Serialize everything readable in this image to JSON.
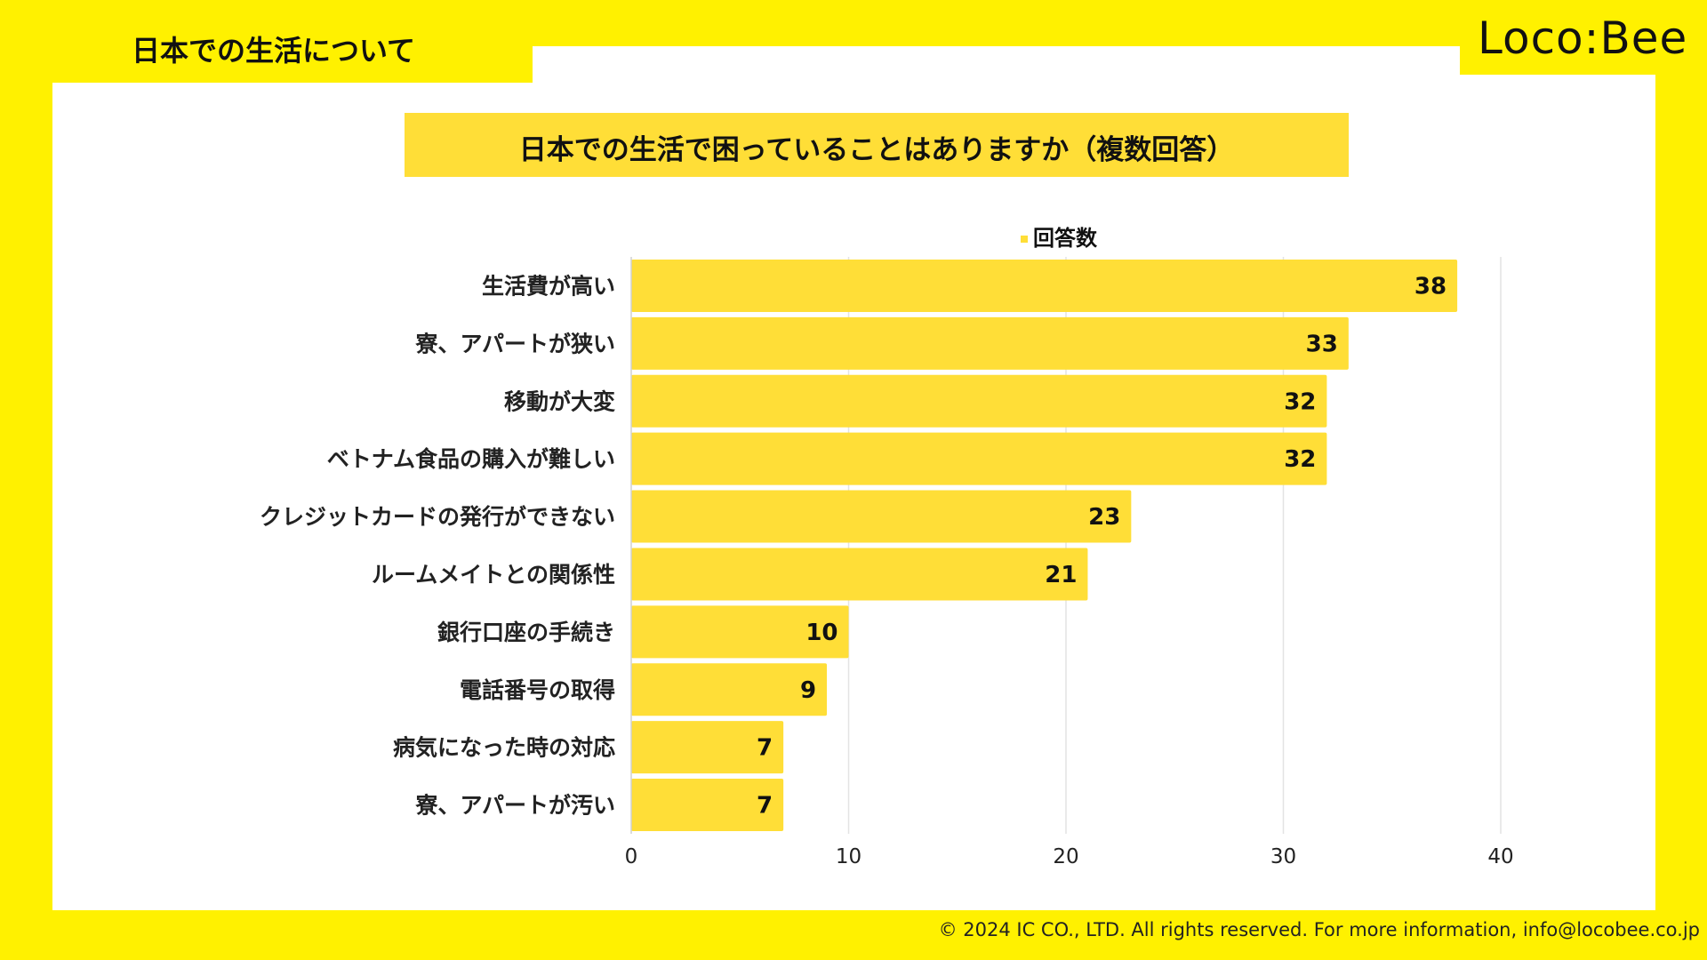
{
  "section_title": "日本での生活について",
  "logo_text": "Loco:Bee",
  "footer_text": "© 2024 IC CO., LTD. All rights reserved. For more information, info@locobee.co.jp",
  "colors": {
    "brand_yellow": "#FFF100",
    "bar": "#FFDE37",
    "panel": "#FFFFFF"
  },
  "chart_data": {
    "type": "bar",
    "orientation": "horizontal",
    "title": "日本での生活で困っていることはありますか（複数回答）",
    "legend": "回答数",
    "categories": [
      "生活費が高い",
      "寮、アパートが狭い",
      "移動が大変",
      "ベトナム食品の購入が難しい",
      "クレジットカードの発行ができない",
      "ルームメイトとの関係性",
      "銀行口座の手続き",
      "電話番号の取得",
      "病気になった時の対応",
      "寮、アパートが汚い"
    ],
    "values": [
      38,
      33,
      32,
      32,
      23,
      21,
      10,
      9,
      7,
      7
    ],
    "xlim": [
      0,
      40
    ],
    "xticks": [
      0,
      10,
      20,
      30,
      40
    ],
    "grid": true
  }
}
